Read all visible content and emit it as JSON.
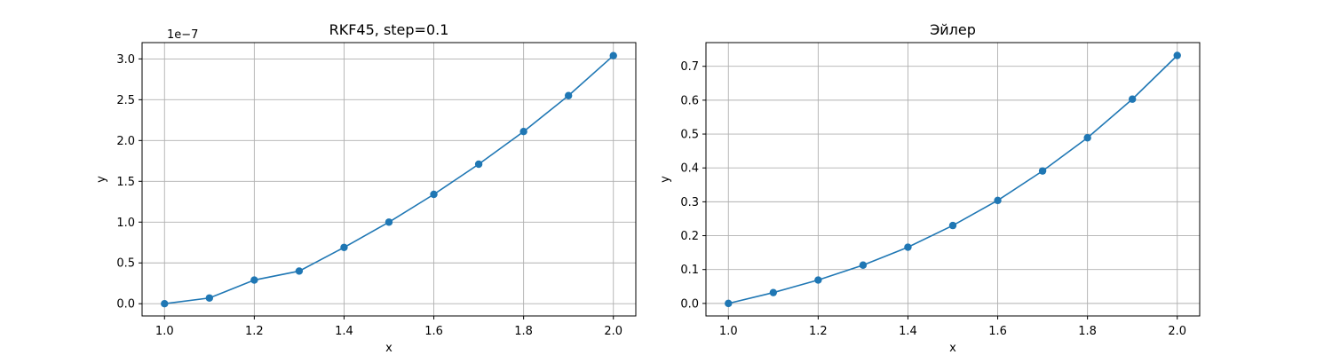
{
  "chart_data": [
    {
      "type": "line",
      "title": "RKF45, step=0.1",
      "xlabel": "x",
      "ylabel": "y",
      "offset_text": "1e−7",
      "x": [
        1.0,
        1.1,
        1.2,
        1.3,
        1.4,
        1.5,
        1.6,
        1.7,
        1.8,
        1.9,
        2.0
      ],
      "series": [
        {
          "values": [
            0.0,
            0.07,
            0.29,
            0.4,
            0.69,
            1.0,
            1.34,
            1.71,
            2.11,
            2.55,
            3.04
          ]
        }
      ],
      "xlim": [
        0.95,
        2.05
      ],
      "ylim": [
        -0.15,
        3.2
      ],
      "xticks": [
        1.0,
        1.2,
        1.4,
        1.6,
        1.8,
        2.0
      ],
      "xtick_labels": [
        "1.0",
        "1.2",
        "1.4",
        "1.6",
        "1.8",
        "2.0"
      ],
      "yticks": [
        0.0,
        0.5,
        1.0,
        1.5,
        2.0,
        2.5,
        3.0
      ],
      "ytick_labels": [
        "0.0",
        "0.5",
        "1.0",
        "1.5",
        "2.0",
        "2.5",
        "3.0"
      ],
      "grid": true,
      "marker": "circle",
      "color": "#1f77b4"
    },
    {
      "type": "line",
      "title": "Эйлер",
      "xlabel": "x",
      "ylabel": "y",
      "x": [
        1.0,
        1.1,
        1.2,
        1.3,
        1.4,
        1.5,
        1.6,
        1.7,
        1.8,
        1.9,
        2.0
      ],
      "series": [
        {
          "values": [
            0.0,
            0.032,
            0.069,
            0.113,
            0.166,
            0.23,
            0.304,
            0.391,
            0.489,
            0.603,
            0.732
          ]
        }
      ],
      "xlim": [
        0.95,
        2.05
      ],
      "ylim": [
        -0.037,
        0.77
      ],
      "xticks": [
        1.0,
        1.2,
        1.4,
        1.6,
        1.8,
        2.0
      ],
      "xtick_labels": [
        "1.0",
        "1.2",
        "1.4",
        "1.6",
        "1.8",
        "2.0"
      ],
      "yticks": [
        0.0,
        0.1,
        0.2,
        0.3,
        0.4,
        0.5,
        0.6,
        0.7
      ],
      "ytick_labels": [
        "0.0",
        "0.1",
        "0.2",
        "0.3",
        "0.4",
        "0.5",
        "0.6",
        "0.7"
      ],
      "grid": true,
      "marker": "circle",
      "color": "#1f77b4"
    }
  ]
}
